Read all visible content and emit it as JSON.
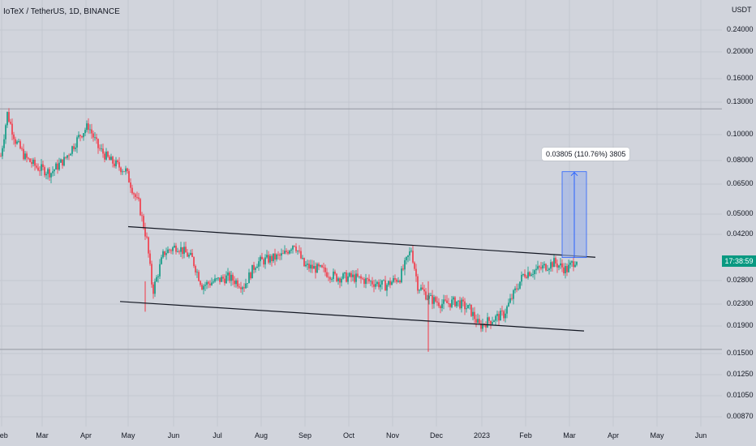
{
  "header": {
    "title": "IoTeX / TetherUS, 1D, BINANCE"
  },
  "price_axis": {
    "currency": "USDT",
    "ticks": [
      "0.24000",
      "0.20000",
      "0.16000",
      "0.13000",
      "0.10000",
      "0.08000",
      "0.06500",
      "0.05000",
      "0.04200",
      "0.02800",
      "0.02300",
      "0.01900",
      "0.01500",
      "0.01250",
      "0.01050",
      "0.00870"
    ],
    "last_price_label": "17:38:59"
  },
  "time_axis": {
    "ticks": [
      "Feb",
      "Mar",
      "Apr",
      "May",
      "Jun",
      "Jul",
      "Aug",
      "Sep",
      "Oct",
      "Nov",
      "Dec",
      "2023",
      "Feb",
      "Mar",
      "Apr",
      "May",
      "Jun"
    ]
  },
  "measure": {
    "label": "0.03805 (110.76%) 3805"
  },
  "colors": {
    "up": "#089981",
    "down": "#f23645",
    "background": "#d1d4dc",
    "measure_fill": "#9bb0e6",
    "measure_line": "#2962ff"
  },
  "chart_data": {
    "type": "candlestick",
    "scale": "log",
    "title": "IoTeX / TetherUS, 1D, BINANCE",
    "y_ticks": [
      0.24,
      0.2,
      0.16,
      0.13,
      0.1,
      0.08,
      0.065,
      0.05,
      0.042,
      0.028,
      0.023,
      0.019,
      0.015,
      0.0125,
      0.0105,
      0.0087
    ],
    "x_ticks": [
      "Feb",
      "Mar",
      "Apr",
      "May",
      "Jun",
      "Jul",
      "Aug",
      "Sep",
      "Oct",
      "Nov",
      "Dec",
      "2023",
      "Feb",
      "Mar",
      "Apr",
      "May",
      "Jun"
    ],
    "price_path": [
      {
        "t": 0,
        "p": 0.083
      },
      {
        "t": 8,
        "p": 0.12
      },
      {
        "t": 18,
        "p": 0.095
      },
      {
        "t": 30,
        "p": 0.082
      },
      {
        "t": 45,
        "p": 0.075
      },
      {
        "t": 60,
        "p": 0.072
      },
      {
        "t": 75,
        "p": 0.08
      },
      {
        "t": 95,
        "p": 0.1
      },
      {
        "t": 105,
        "p": 0.108
      },
      {
        "t": 118,
        "p": 0.088
      },
      {
        "t": 130,
        "p": 0.08
      },
      {
        "t": 150,
        "p": 0.073
      },
      {
        "t": 165,
        "p": 0.055
      },
      {
        "t": 175,
        "p": 0.04
      },
      {
        "t": 182,
        "p": 0.026
      },
      {
        "t": 195,
        "p": 0.036
      },
      {
        "t": 210,
        "p": 0.038
      },
      {
        "t": 228,
        "p": 0.034
      },
      {
        "t": 240,
        "p": 0.027
      },
      {
        "t": 255,
        "p": 0.028
      },
      {
        "t": 270,
        "p": 0.029
      },
      {
        "t": 290,
        "p": 0.027
      },
      {
        "t": 305,
        "p": 0.033
      },
      {
        "t": 320,
        "p": 0.034
      },
      {
        "t": 335,
        "p": 0.035
      },
      {
        "t": 348,
        "p": 0.039
      },
      {
        "t": 360,
        "p": 0.032
      },
      {
        "t": 380,
        "p": 0.031
      },
      {
        "t": 400,
        "p": 0.029
      },
      {
        "t": 420,
        "p": 0.029
      },
      {
        "t": 440,
        "p": 0.028
      },
      {
        "t": 460,
        "p": 0.027
      },
      {
        "t": 478,
        "p": 0.029
      },
      {
        "t": 492,
        "p": 0.037
      },
      {
        "t": 500,
        "p": 0.027
      },
      {
        "t": 515,
        "p": 0.024
      },
      {
        "t": 530,
        "p": 0.023
      },
      {
        "t": 545,
        "p": 0.0235
      },
      {
        "t": 560,
        "p": 0.022
      },
      {
        "t": 572,
        "p": 0.019
      },
      {
        "t": 585,
        "p": 0.02
      },
      {
        "t": 600,
        "p": 0.021
      },
      {
        "t": 612,
        "p": 0.025
      },
      {
        "t": 625,
        "p": 0.03
      },
      {
        "t": 640,
        "p": 0.031
      },
      {
        "t": 660,
        "p": 0.033
      },
      {
        "t": 675,
        "p": 0.031
      },
      {
        "t": 686,
        "p": 0.034
      }
    ],
    "reference_levels": [
      0.125,
      0.0155
    ],
    "channel_upper": {
      "start": {
        "date": "May",
        "price": 0.045
      },
      "end": {
        "date": "Mar",
        "price": 0.0345
      }
    },
    "channel_lower": {
      "start": {
        "date": "May",
        "price": 0.0235
      },
      "end": {
        "date": "Mar",
        "price": 0.0182
      }
    },
    "measure_range": {
      "from": 0.0344,
      "to": 0.0725,
      "change": "0.03805 (110.76%) 3805"
    },
    "grid": true
  }
}
